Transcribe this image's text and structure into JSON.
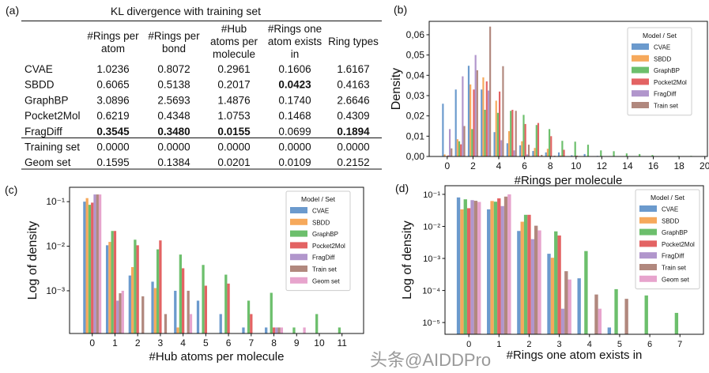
{
  "table": {
    "panel_label": "(a)",
    "title": "KL divergence with training set",
    "header_lines": [
      [
        "#Rings per",
        "atom"
      ],
      [
        "#Rings per",
        "bond"
      ],
      [
        "#Hub",
        "atoms per",
        "molecule"
      ],
      [
        "#Rings one",
        "atom exists",
        "in"
      ],
      [
        "Ring types"
      ]
    ],
    "rows": [
      {
        "label": "CVAE",
        "values": [
          "1.0236",
          "0.8072",
          "0.2961",
          "0.1606",
          "1.6167"
        ],
        "bold": [
          false,
          false,
          false,
          false,
          false
        ]
      },
      {
        "label": "SBDD",
        "values": [
          "0.6065",
          "0.5138",
          "0.2017",
          "0.0423",
          "0.4163"
        ],
        "bold": [
          false,
          false,
          false,
          true,
          false
        ]
      },
      {
        "label": "GraphBP",
        "values": [
          "3.0896",
          "2.5693",
          "1.4876",
          "0.1740",
          "2.6646"
        ],
        "bold": [
          false,
          false,
          false,
          false,
          false
        ]
      },
      {
        "label": "Pocket2Mol",
        "values": [
          "0.6219",
          "0.4348",
          "1.0753",
          "0.1468",
          "0.4309"
        ],
        "bold": [
          false,
          false,
          false,
          false,
          false
        ]
      },
      {
        "label": "FragDiff",
        "values": [
          "0.3545",
          "0.3480",
          "0.0155",
          "0.0699",
          "0.1894"
        ],
        "bold": [
          true,
          true,
          true,
          false,
          true
        ]
      },
      {
        "label": "Training set",
        "values": [
          "0.0000",
          "0.0000",
          "0.0000",
          "0.0000",
          "0.0000"
        ],
        "bold": [
          false,
          false,
          false,
          false,
          false
        ]
      },
      {
        "label": "Geom set",
        "values": [
          "0.1595",
          "0.1384",
          "0.0201",
          "0.0109",
          "0.2152"
        ],
        "bold": [
          false,
          false,
          false,
          false,
          false
        ]
      }
    ]
  },
  "watermark": "头条@AIDDPro",
  "colors": {
    "CVAE": "#5b8fc8",
    "SBDD": "#f5a04a",
    "GraphBP": "#5cb85c",
    "Pocket2Mol": "#e05252",
    "FragDiff": "#a98bc6",
    "Train set": "#a87b70",
    "Geom set": "#e49ac8"
  },
  "chart_data": [
    {
      "panel_label": "(b)",
      "type": "bar",
      "xlabel": "#Rings per molecule",
      "ylabel": "Density",
      "yscale": "linear",
      "xlim": [
        -1.4,
        20.2
      ],
      "ylim": [
        0,
        0.0666
      ],
      "xticks": [
        0,
        2,
        4,
        6,
        8,
        10,
        12,
        14,
        16,
        18,
        20
      ],
      "xtick_labels": [
        "0",
        "2",
        "4",
        "6",
        "8",
        "10",
        "12",
        "14",
        "16",
        "18",
        "20"
      ],
      "yticks": [
        0,
        0.01,
        0.02,
        0.03,
        0.04,
        0.05,
        0.06
      ],
      "ytick_labels": [
        "0,00",
        "0,01",
        "0,02",
        "0,03",
        "0,04",
        "0,05",
        "0,06"
      ],
      "grid": false,
      "legend": {
        "title": "Model / Set",
        "placement": "top-right"
      },
      "categories": [
        0,
        1,
        2,
        3,
        4,
        5,
        6,
        7,
        8,
        9,
        10,
        11,
        12,
        13,
        14,
        15,
        16,
        17,
        18,
        19
      ],
      "series": [
        {
          "name": "CVAE",
          "values": [
            0.026,
            0.033,
            0.0447,
            0.033,
            0.012,
            0.0065,
            0.0055,
            0.0027,
            0.002,
            0.002,
            0.0006,
            0.0012,
            0.0003,
            0.0002,
            0,
            0,
            0,
            0,
            0,
            0
          ]
        },
        {
          "name": "SBDD",
          "values": [
            0.001,
            0.0085,
            0.0355,
            0.039,
            0.0275,
            0.0125,
            0.0075,
            0.0042,
            0.0038,
            0.0005,
            0,
            0,
            0,
            0,
            0,
            0,
            0,
            0,
            0,
            0
          ]
        },
        {
          "name": "GraphBP",
          "values": [
            0,
            0.0075,
            0.0135,
            0.023,
            0.0215,
            0.0225,
            0.0205,
            0.0155,
            0.0135,
            0.0077,
            0.0073,
            0.0058,
            0.003,
            0.0026,
            0.0015,
            0.0012,
            0.0007,
            0,
            0.0003,
            0.0003
          ]
        },
        {
          "name": "Pocket2Mol",
          "values": [
            0.0005,
            0.006,
            0.033,
            0.037,
            0.032,
            0.023,
            0.016,
            0.0165,
            0.01,
            0.0033,
            0.0004,
            0,
            0,
            0,
            0,
            0,
            0,
            0,
            0,
            0
          ]
        },
        {
          "name": "FragDiff",
          "values": [
            0.0135,
            0.0395,
            0.05,
            0.0325,
            0.008,
            0.003,
            0.001,
            0,
            0,
            0,
            0,
            0,
            0,
            0,
            0,
            0,
            0,
            0,
            0,
            0
          ]
        },
        {
          "name": "Train set",
          "values": [
            0.004,
            0.015,
            0.0425,
            0.064,
            0.0445,
            0.0225,
            0.0058,
            0.0008,
            0.0004,
            0,
            0,
            0,
            0,
            0,
            0,
            0,
            0,
            0,
            0,
            0
          ]
        }
      ]
    },
    {
      "panel_label": "(c)",
      "type": "bar",
      "xlabel": "#Hub atoms per molecule",
      "ylabel": "Log of density",
      "yscale": "log",
      "xlim": [
        -1.0,
        11.95
      ],
      "ylim": [
        0.00011,
        0.21
      ],
      "xticks": [
        0,
        1,
        2,
        3,
        4,
        5,
        6,
        7,
        8,
        9,
        10,
        11
      ],
      "xtick_labels": [
        "0",
        "1",
        "2",
        "3",
        "4",
        "5",
        "6",
        "7",
        "8",
        "9",
        "10",
        "11"
      ],
      "yticks": [
        0.1,
        0.01,
        0.001
      ],
      "ytick_labels": [
        "10⁻¹",
        "10⁻²",
        "10⁻³"
      ],
      "grid": false,
      "legend": {
        "title": "Model / Set",
        "placement": "top-right"
      },
      "categories": [
        0,
        1,
        2,
        3,
        4,
        5,
        6,
        7,
        8,
        9,
        10,
        11
      ],
      "series": [
        {
          "name": "CVAE",
          "values": [
            0.1,
            0.0105,
            0.0022,
            0.0016,
            0.001,
            0.0006,
            0.0003,
            0.00015,
            0.00015,
            null,
            null,
            null
          ]
        },
        {
          "name": "SBDD",
          "values": [
            0.12,
            0.0125,
            0.0034,
            0.00115,
            0.00015,
            null,
            null,
            null,
            null,
            null,
            null,
            null
          ]
        },
        {
          "name": "GraphBP",
          "values": [
            0.085,
            0.022,
            0.014,
            0.0085,
            0.0065,
            0.0038,
            0.0023,
            0.0006,
            0.0009,
            0.00015,
            0.0003,
            0.00015
          ]
        },
        {
          "name": "Pocket2Mol",
          "values": [
            0.095,
            0.022,
            0.0105,
            0.0135,
            0.0032,
            0.0013,
            0.00145,
            0.0003,
            0.00015,
            null,
            null,
            null
          ]
        },
        {
          "name": "FragDiff",
          "values": [
            0.145,
            0.0006,
            null,
            null,
            null,
            null,
            null,
            null,
            0.00015,
            null,
            null,
            null
          ]
        },
        {
          "name": "Train set",
          "values": [
            0.145,
            0.00088,
            0.00075,
            0.0003,
            0.001,
            null,
            null,
            null,
            0.00015,
            null,
            null,
            null
          ]
        },
        {
          "name": "Geom set",
          "values": [
            0.145,
            0.001,
            null,
            null,
            0.0003,
            null,
            null,
            null,
            0.00015,
            0.00015,
            null,
            null
          ]
        }
      ]
    },
    {
      "panel_label": "(d)",
      "type": "bar",
      "xlabel": "#Rings one atom exists in",
      "ylabel": "Log of density",
      "yscale": "log",
      "xlim": [
        -0.79,
        7.78
      ],
      "ylim": [
        4.3e-06,
        0.186
      ],
      "xticks": [
        0,
        1,
        2,
        3,
        4,
        5,
        6,
        7
      ],
      "xtick_labels": [
        "0",
        "1",
        "2",
        "3",
        "4",
        "5",
        "6",
        "7"
      ],
      "yticks": [
        0.1,
        0.01,
        0.001,
        0.0001,
        1e-05
      ],
      "ytick_labels": [
        "10⁻¹",
        "10⁻²",
        "10⁻³",
        "10⁻⁴",
        "10⁻⁵"
      ],
      "grid": false,
      "legend": {
        "title": "Model / Set",
        "placement": "top-right"
      },
      "categories": [
        0,
        1,
        2,
        3,
        4,
        5,
        6,
        7
      ],
      "series": [
        {
          "name": "CVAE",
          "values": [
            0.08,
            0.034,
            0.0072,
            0.0014,
            0.00024,
            7e-06,
            null,
            null
          ]
        },
        {
          "name": "SBDD",
          "values": [
            0.034,
            0.062,
            0.014,
            0.00105,
            null,
            null,
            null,
            null
          ]
        },
        {
          "name": "GraphBP",
          "values": [
            0.07,
            0.059,
            0.023,
            0.007,
            0.0017,
            0.00011,
            7e-05,
            2e-05
          ]
        },
        {
          "name": "Pocket2Mol",
          "values": [
            0.037,
            0.075,
            0.023,
            0.0052,
            null,
            null,
            null,
            null
          ]
        },
        {
          "name": "FragDiff",
          "values": [
            0.066,
            0.043,
            0.004,
            2.7e-05,
            null,
            null,
            null,
            null
          ]
        },
        {
          "name": "Train set",
          "values": [
            0.063,
            0.085,
            0.0105,
            0.0004,
            7.5e-05,
            5.5e-05,
            null,
            null
          ]
        },
        {
          "name": "Geom set",
          "values": [
            0.058,
            0.1,
            0.0075,
            0.00022,
            2.7e-05,
            null,
            null,
            null
          ]
        }
      ]
    }
  ]
}
